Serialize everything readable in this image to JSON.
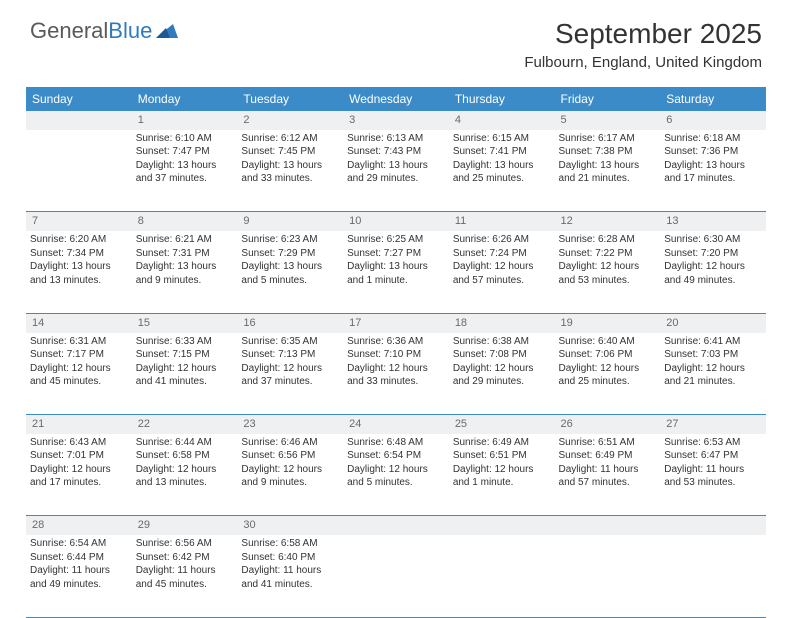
{
  "logo": {
    "text1": "General",
    "text2": "Blue"
  },
  "title": "September 2025",
  "location": "Fulbourn, England, United Kingdom",
  "colors": {
    "header_bg": "#3b8bc8",
    "header_text": "#ffffff",
    "daynum_bg": "#eef0f2",
    "daynum_text": "#6a6a6a",
    "border": "#3b8bc8",
    "logo_gray": "#5a5a5a",
    "logo_blue": "#2f7bbf",
    "body_text": "#333333",
    "page_bg": "#ffffff"
  },
  "weekdays": [
    "Sunday",
    "Monday",
    "Tuesday",
    "Wednesday",
    "Thursday",
    "Friday",
    "Saturday"
  ],
  "weeks": [
    {
      "nums": [
        "",
        "1",
        "2",
        "3",
        "4",
        "5",
        "6"
      ],
      "cells": [
        "",
        "Sunrise: 6:10 AM\nSunset: 7:47 PM\nDaylight: 13 hours and 37 minutes.",
        "Sunrise: 6:12 AM\nSunset: 7:45 PM\nDaylight: 13 hours and 33 minutes.",
        "Sunrise: 6:13 AM\nSunset: 7:43 PM\nDaylight: 13 hours and 29 minutes.",
        "Sunrise: 6:15 AM\nSunset: 7:41 PM\nDaylight: 13 hours and 25 minutes.",
        "Sunrise: 6:17 AM\nSunset: 7:38 PM\nDaylight: 13 hours and 21 minutes.",
        "Sunrise: 6:18 AM\nSunset: 7:36 PM\nDaylight: 13 hours and 17 minutes."
      ]
    },
    {
      "nums": [
        "7",
        "8",
        "9",
        "10",
        "11",
        "12",
        "13"
      ],
      "cells": [
        "Sunrise: 6:20 AM\nSunset: 7:34 PM\nDaylight: 13 hours and 13 minutes.",
        "Sunrise: 6:21 AM\nSunset: 7:31 PM\nDaylight: 13 hours and 9 minutes.",
        "Sunrise: 6:23 AM\nSunset: 7:29 PM\nDaylight: 13 hours and 5 minutes.",
        "Sunrise: 6:25 AM\nSunset: 7:27 PM\nDaylight: 13 hours and 1 minute.",
        "Sunrise: 6:26 AM\nSunset: 7:24 PM\nDaylight: 12 hours and 57 minutes.",
        "Sunrise: 6:28 AM\nSunset: 7:22 PM\nDaylight: 12 hours and 53 minutes.",
        "Sunrise: 6:30 AM\nSunset: 7:20 PM\nDaylight: 12 hours and 49 minutes."
      ]
    },
    {
      "nums": [
        "14",
        "15",
        "16",
        "17",
        "18",
        "19",
        "20"
      ],
      "cells": [
        "Sunrise: 6:31 AM\nSunset: 7:17 PM\nDaylight: 12 hours and 45 minutes.",
        "Sunrise: 6:33 AM\nSunset: 7:15 PM\nDaylight: 12 hours and 41 minutes.",
        "Sunrise: 6:35 AM\nSunset: 7:13 PM\nDaylight: 12 hours and 37 minutes.",
        "Sunrise: 6:36 AM\nSunset: 7:10 PM\nDaylight: 12 hours and 33 minutes.",
        "Sunrise: 6:38 AM\nSunset: 7:08 PM\nDaylight: 12 hours and 29 minutes.",
        "Sunrise: 6:40 AM\nSunset: 7:06 PM\nDaylight: 12 hours and 25 minutes.",
        "Sunrise: 6:41 AM\nSunset: 7:03 PM\nDaylight: 12 hours and 21 minutes."
      ]
    },
    {
      "nums": [
        "21",
        "22",
        "23",
        "24",
        "25",
        "26",
        "27"
      ],
      "cells": [
        "Sunrise: 6:43 AM\nSunset: 7:01 PM\nDaylight: 12 hours and 17 minutes.",
        "Sunrise: 6:44 AM\nSunset: 6:58 PM\nDaylight: 12 hours and 13 minutes.",
        "Sunrise: 6:46 AM\nSunset: 6:56 PM\nDaylight: 12 hours and 9 minutes.",
        "Sunrise: 6:48 AM\nSunset: 6:54 PM\nDaylight: 12 hours and 5 minutes.",
        "Sunrise: 6:49 AM\nSunset: 6:51 PM\nDaylight: 12 hours and 1 minute.",
        "Sunrise: 6:51 AM\nSunset: 6:49 PM\nDaylight: 11 hours and 57 minutes.",
        "Sunrise: 6:53 AM\nSunset: 6:47 PM\nDaylight: 11 hours and 53 minutes."
      ]
    },
    {
      "nums": [
        "28",
        "29",
        "30",
        "",
        "",
        "",
        ""
      ],
      "cells": [
        "Sunrise: 6:54 AM\nSunset: 6:44 PM\nDaylight: 11 hours and 49 minutes.",
        "Sunrise: 6:56 AM\nSunset: 6:42 PM\nDaylight: 11 hours and 45 minutes.",
        "Sunrise: 6:58 AM\nSunset: 6:40 PM\nDaylight: 11 hours and 41 minutes.",
        "",
        "",
        "",
        ""
      ]
    }
  ]
}
